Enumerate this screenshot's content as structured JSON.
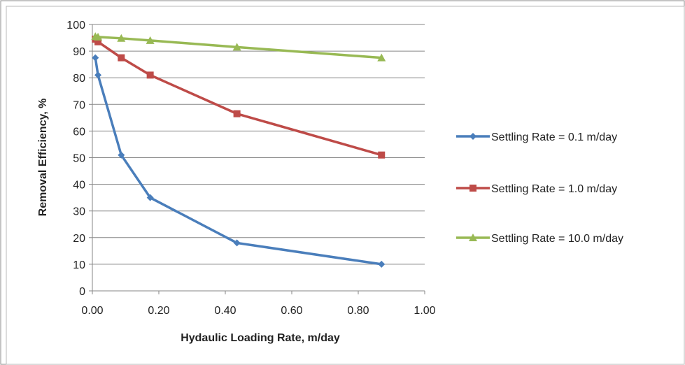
{
  "chart_data": {
    "type": "line",
    "title": "",
    "xlabel": "Hydaulic Loading Rate, m/day",
    "ylabel": "Removal Efficiency, %",
    "xlim": [
      0,
      1.0
    ],
    "ylim": [
      0,
      100
    ],
    "x_ticks": [
      "0.00",
      "0.20",
      "0.40",
      "0.60",
      "0.80",
      "1.00"
    ],
    "y_ticks": [
      "0",
      "10",
      "20",
      "30",
      "40",
      "50",
      "60",
      "70",
      "80",
      "90",
      "100"
    ],
    "grid": "horizontal",
    "legend_position": "right",
    "series": [
      {
        "name": "Settling Rate = 0.1 m/day",
        "color": "#4a7ebb",
        "marker": "diamond",
        "x": [
          0.009,
          0.017,
          0.087,
          0.174,
          0.435,
          0.87
        ],
        "y": [
          87.5,
          81,
          51,
          35,
          18,
          10
        ]
      },
      {
        "name": "Settling Rate = 1.0 m/day",
        "color": "#be4b48",
        "marker": "square",
        "x": [
          0.009,
          0.017,
          0.087,
          0.174,
          0.435,
          0.87
        ],
        "y": [
          94.5,
          93.5,
          87.5,
          81,
          66.5,
          51
        ]
      },
      {
        "name": "Settling Rate = 10.0 m/day",
        "color": "#98b954",
        "marker": "triangle",
        "x": [
          0.009,
          0.017,
          0.087,
          0.174,
          0.435,
          0.87
        ],
        "y": [
          95.5,
          95.3,
          94.8,
          94,
          91.5,
          87.5
        ]
      }
    ]
  }
}
